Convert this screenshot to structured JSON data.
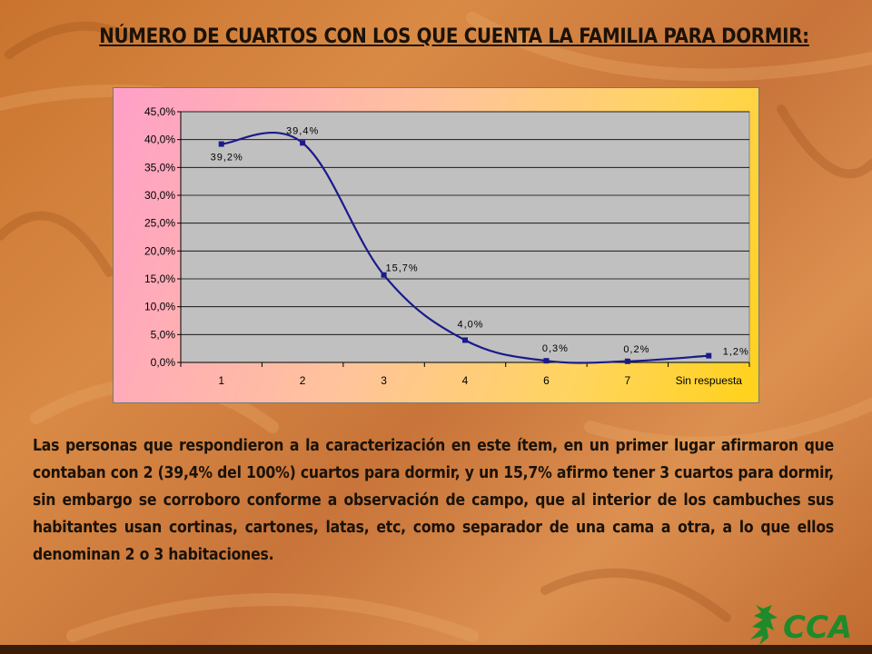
{
  "title": "NÚMERO DE CUARTOS CON LOS QUE CUENTA LA FAMILIA  PARA DORMIR:",
  "paragraph": "Las personas que respondieron a la caracterización en este ítem, en un primer lugar afirmaron que contaban con 2 (39,4% del 100%) cuartos para dormir, y un 15,7% afirmo tener 3 cuartos para dormir, sin embargo se corroboro conforme a  observación de campo, que al interior de los cambuches sus habitantes usan cortinas, cartones, latas, etc, como separador de una cama a otra, a lo que ellos denominan 2 o 3 habitaciones.",
  "logo": {
    "text": "CCA",
    "color": "#1f8a2a"
  },
  "chart_data": {
    "type": "line",
    "categories": [
      "1",
      "2",
      "3",
      "4",
      "6",
      "7",
      "Sin respuesta"
    ],
    "values": [
      39.2,
      39.4,
      15.7,
      4.0,
      0.3,
      0.2,
      1.2
    ],
    "data_labels": [
      "39,2%",
      "39,4%",
      "15,7%",
      "4,0%",
      "0,3%",
      "0,2%",
      "1,2%"
    ],
    "ylim": [
      0,
      45
    ],
    "yticks": [
      0,
      5,
      10,
      15,
      20,
      25,
      30,
      35,
      40,
      45
    ],
    "ytick_labels": [
      "0,0%",
      "5,0%",
      "10,0%",
      "15,0%",
      "20,0%",
      "25,0%",
      "30,0%",
      "35,0%",
      "40,0%",
      "45,0%"
    ],
    "title": "",
    "xlabel": "",
    "ylabel": "",
    "grid": true,
    "legend": "none",
    "line_color": "#1a1a8c",
    "plot_bg": "#c0c0c0"
  }
}
